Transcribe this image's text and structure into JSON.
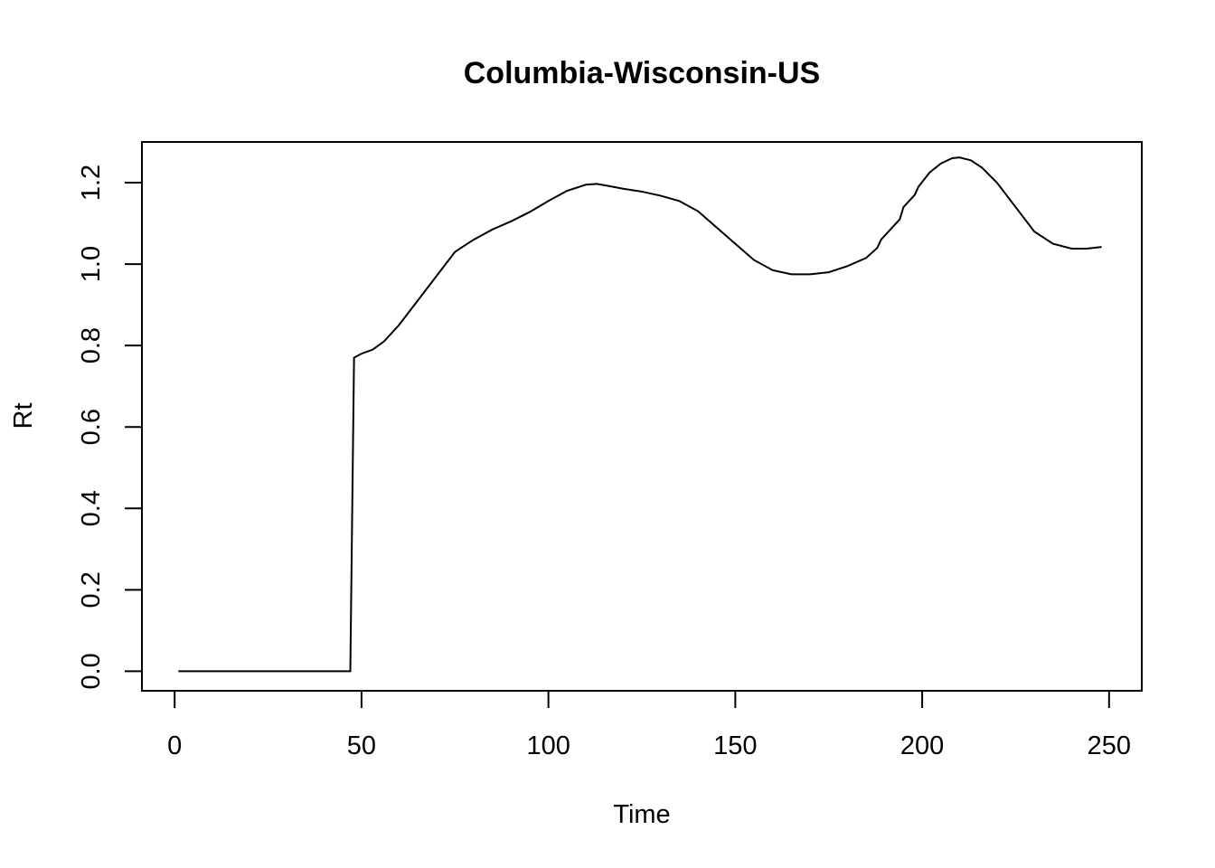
{
  "chart_data": {
    "type": "line",
    "title": "Columbia-Wisconsin-US",
    "xlabel": "Time",
    "ylabel": "Rt",
    "xlim": [
      -8.75,
      258.75
    ],
    "ylim": [
      -0.048,
      1.3
    ],
    "xticks": [
      0,
      50,
      100,
      150,
      200,
      250
    ],
    "xtick_labels": [
      "0",
      "50",
      "100",
      "150",
      "200",
      "250"
    ],
    "yticks": [
      0.0,
      0.2,
      0.4,
      0.6,
      0.8,
      1.0,
      1.2
    ],
    "ytick_labels": [
      "0.0",
      "0.2",
      "0.4",
      "0.6",
      "0.8",
      "1.0",
      "1.2"
    ],
    "grid": false,
    "legend": "none",
    "line_color": "#000000",
    "series": [
      {
        "x": [
          1,
          10,
          20,
          30,
          40,
          47,
          48,
          50,
          53,
          56,
          60,
          65,
          70,
          75,
          80,
          85,
          90,
          95,
          100,
          105,
          110,
          113,
          116,
          120,
          125,
          130,
          135,
          140,
          145,
          150,
          155,
          160,
          165,
          170,
          175,
          180,
          185,
          188,
          189,
          192,
          194,
          195,
          198,
          199,
          202,
          205,
          208,
          210,
          213,
          216,
          220,
          225,
          230,
          235,
          240,
          244,
          248
        ],
        "y": [
          0,
          0,
          0,
          0,
          0,
          0,
          0.77,
          0.78,
          0.79,
          0.81,
          0.85,
          0.91,
          0.97,
          1.03,
          1.06,
          1.085,
          1.105,
          1.128,
          1.155,
          1.18,
          1.195,
          1.197,
          1.192,
          1.185,
          1.178,
          1.168,
          1.155,
          1.13,
          1.09,
          1.05,
          1.01,
          0.985,
          0.975,
          0.975,
          0.98,
          0.995,
          1.015,
          1.04,
          1.06,
          1.09,
          1.11,
          1.14,
          1.17,
          1.19,
          1.225,
          1.247,
          1.26,
          1.262,
          1.255,
          1.237,
          1.2,
          1.14,
          1.08,
          1.05,
          1.038,
          1.038,
          1.042
        ]
      }
    ]
  }
}
